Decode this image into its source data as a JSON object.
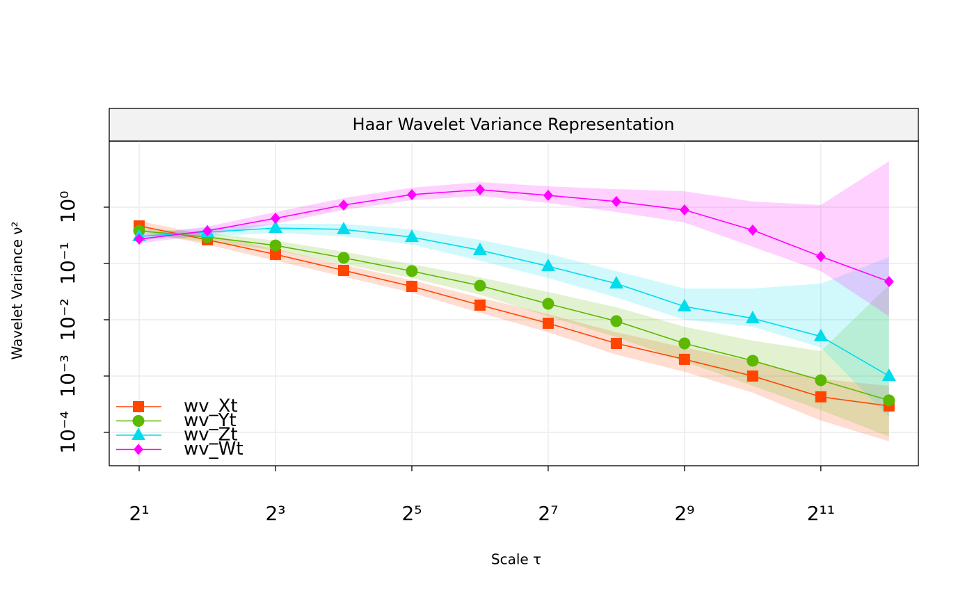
{
  "chart_data": {
    "type": "line",
    "title": "Haar Wavelet Variance Representation",
    "xlabel": "Scale τ",
    "ylabel": "Wavelet Variance ν²",
    "x": [
      2,
      4,
      8,
      16,
      32,
      64,
      128,
      256,
      512,
      1024,
      2048,
      4096
    ],
    "xlog": true,
    "ylog": true,
    "grid": true,
    "legend": "bottom-left",
    "xlim": [
      1.475,
      5520
    ],
    "ylim": [
      2.55e-05,
      14.9
    ],
    "xticks": [
      {
        "value": 2,
        "label": "2¹"
      },
      {
        "value": 8,
        "label": "2³"
      },
      {
        "value": 32,
        "label": "2⁵"
      },
      {
        "value": 128,
        "label": "2⁷"
      },
      {
        "value": 512,
        "label": "2⁹"
      },
      {
        "value": 2048,
        "label": "2¹¹"
      }
    ],
    "yticks": [
      {
        "value": 0.0001,
        "label": "10⁻⁴"
      },
      {
        "value": 0.001,
        "label": "10⁻³"
      },
      {
        "value": 0.01,
        "label": "10⁻²"
      },
      {
        "value": 0.1,
        "label": "10⁻¹"
      },
      {
        "value": 1,
        "label": "10⁰"
      }
    ],
    "series": [
      {
        "name": "wv_Xt",
        "color": "#ff4500",
        "marker": "square",
        "values": [
          0.464,
          0.263,
          0.145,
          0.0753,
          0.0391,
          0.0182,
          0.00867,
          0.0038,
          0.00198,
          0.001,
          0.000427,
          0.000294
        ],
        "upper": [
          0.566,
          0.321,
          0.182,
          0.0945,
          0.0506,
          0.0248,
          0.0126,
          0.006,
          0.0032,
          0.00182,
          0.00089,
          0.00067
        ],
        "lower": [
          0.38,
          0.216,
          0.112,
          0.0583,
          0.0303,
          0.0133,
          0.006,
          0.0024,
          0.00119,
          0.000506,
          0.000162,
          6.92e-05
        ]
      },
      {
        "name": "wv_Yt",
        "color": "#5cb800",
        "marker": "circle",
        "values": [
          0.38,
          0.294,
          0.209,
          0.126,
          0.0731,
          0.0403,
          0.0192,
          0.00945,
          0.0038,
          0.00187,
          0.000843,
          0.00037
        ],
        "upper": [
          0.426,
          0.349,
          0.255,
          0.162,
          0.0973,
          0.0567,
          0.0312,
          0.0167,
          0.00753,
          0.00426,
          0.00278,
          0.0414
        ],
        "lower": [
          0.34,
          0.241,
          0.172,
          0.0973,
          0.0551,
          0.0278,
          0.0115,
          0.00491,
          0.00182,
          0.00067,
          0.000248,
          8.43e-05
        ]
      },
      {
        "name": "wv_Zt",
        "color": "#00dcec",
        "marker": "triangle",
        "values": [
          0.303,
          0.36,
          0.426,
          0.403,
          0.294,
          0.172,
          0.0893,
          0.0439,
          0.0172,
          0.0106,
          0.00506,
          0.001
        ],
        "upper": [
          0.349,
          0.426,
          0.505,
          0.505,
          0.403,
          0.263,
          0.149,
          0.0731,
          0.0359,
          0.0359,
          0.0439,
          0.129
        ],
        "lower": [
          0.263,
          0.303,
          0.349,
          0.303,
          0.216,
          0.112,
          0.0551,
          0.0248,
          0.01,
          0.00753,
          0.0032,
          0.000187
        ]
      },
      {
        "name": "wv_Wt",
        "color": "#ff00ff",
        "marker": "diamond",
        "values": [
          0.27,
          0.38,
          0.634,
          1.09,
          1.67,
          2.04,
          1.62,
          1.26,
          0.892,
          0.391,
          0.133,
          0.0478
        ],
        "upper": [
          0.321,
          0.451,
          0.82,
          1.45,
          2.22,
          2.78,
          2.35,
          2.09,
          1.92,
          1.26,
          1.09,
          6.53
        ],
        "lower": [
          0.228,
          0.321,
          0.505,
          0.892,
          1.33,
          1.58,
          1.19,
          0.82,
          0.535,
          0.198,
          0.0731,
          0.0115
        ]
      }
    ]
  }
}
